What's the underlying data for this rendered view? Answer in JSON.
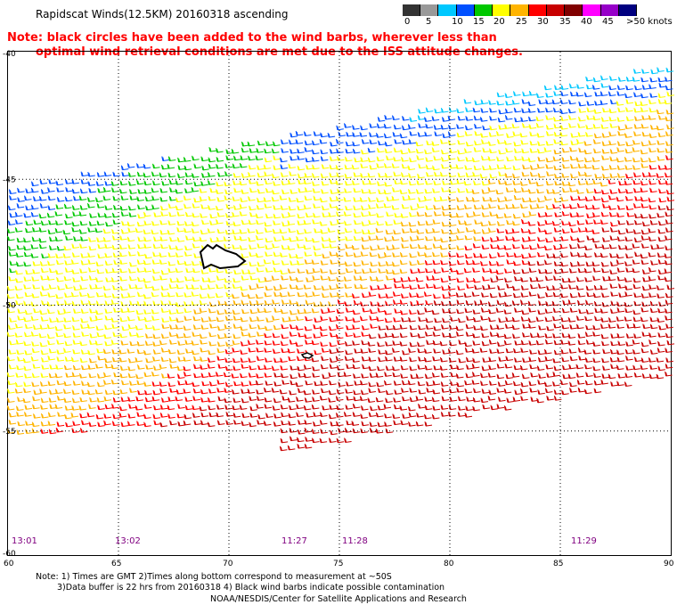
{
  "title": "Rapidscat Winds(12.5KM) 20160318 ascending",
  "note": {
    "line1": "Note: black circles have been added to the wind barbs, wherever less than",
    "line2": "optimal wind retrieval conditions are met due to the ISS attitude changes."
  },
  "color_scale": {
    "labels": [
      "0",
      "5",
      "10",
      "15",
      "20",
      "25",
      "30",
      "35",
      "40",
      "45",
      ">50 knots"
    ],
    "colors": [
      "#333333",
      "#999999",
      "#00c8ff",
      "#0050ff",
      "#00c800",
      "#ffff00",
      "#ffb400",
      "#ff0000",
      "#c80000",
      "#800000",
      "#ff00ff",
      "#9600c8",
      "#000080"
    ]
  },
  "map": {
    "lat_labels": [
      "-40",
      "-45",
      "-50",
      "-55",
      "-60"
    ],
    "lon_labels": [
      "60",
      "65",
      "70",
      "75",
      "80",
      "85",
      "90"
    ],
    "time_labels": [
      "13:01",
      "13:02",
      "11:27",
      "11:28",
      "11:29"
    ]
  },
  "footnote": {
    "line1": "Note: 1) Times are GMT 2)Times along bottom correspond to measurement at ~50S",
    "line2": "3)Data buffer is 22 hrs from 20160318 4) Black wind barbs indicate possible contamination"
  },
  "credit": "NOAA/NESDIS/Center for Satellite Applications and Research"
}
